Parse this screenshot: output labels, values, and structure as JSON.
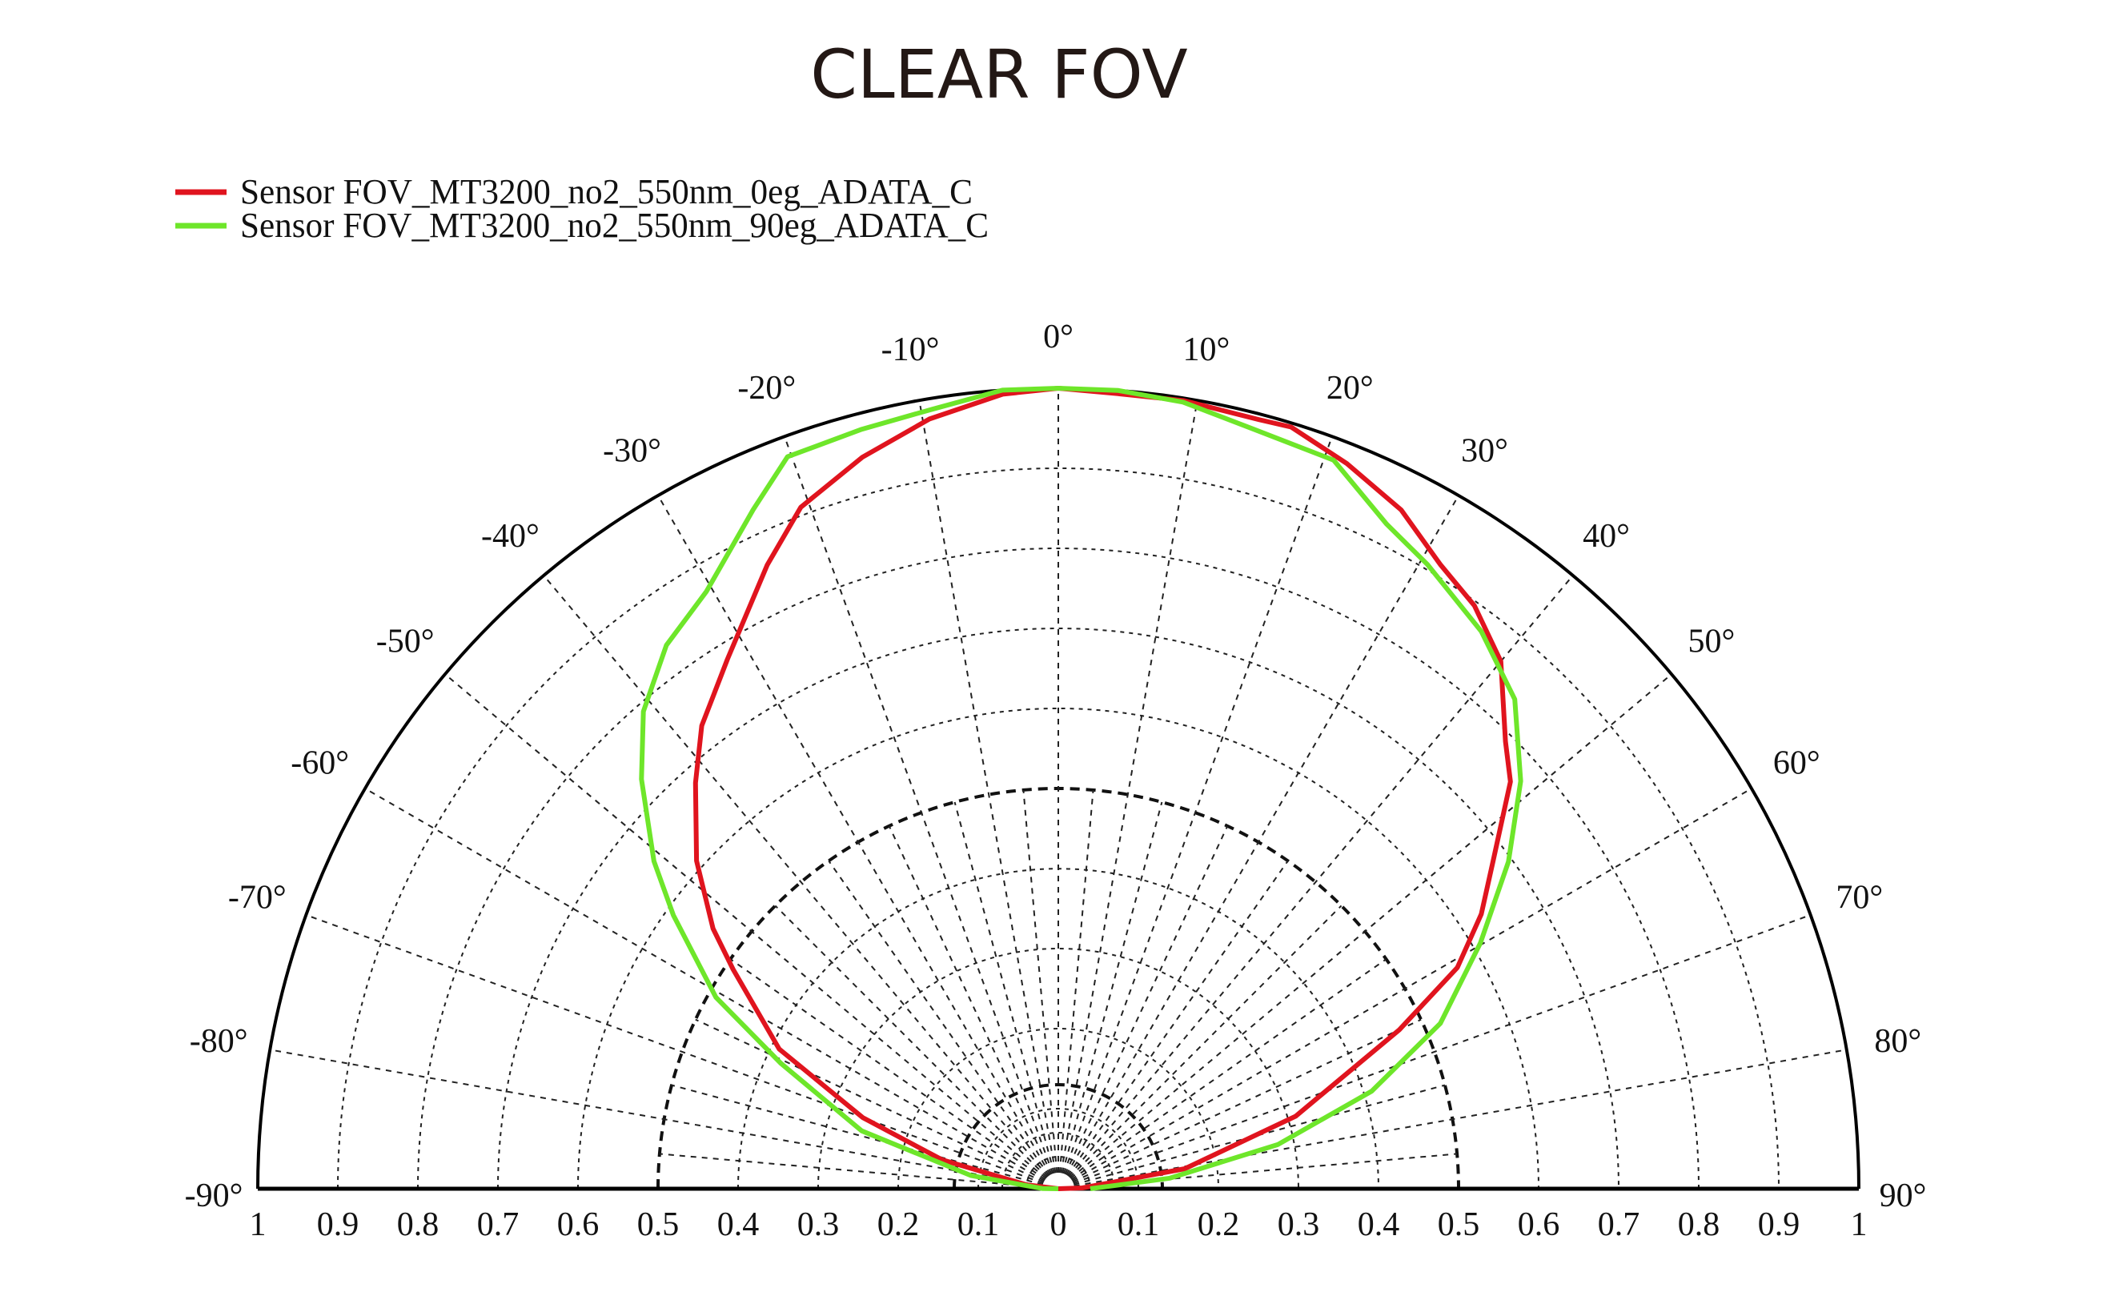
{
  "chart_data": {
    "type": "polar-line",
    "title": "CLEAR FOV",
    "angle_range": [
      -90,
      90
    ],
    "radial_range": [
      0,
      1
    ],
    "angle_ticks": [
      -90,
      -80,
      -70,
      -60,
      -50,
      -40,
      -30,
      -20,
      -10,
      0,
      10,
      20,
      30,
      40,
      50,
      60,
      70,
      80,
      90
    ],
    "angle_tick_labels": [
      "-90°",
      "-80°",
      "-70°",
      "-60°",
      "-50°",
      "-40°",
      "-30°",
      "-20°",
      "-10°",
      "0°",
      "10°",
      "20°",
      "30°",
      "40°",
      "50°",
      "60°",
      "70°",
      "80°",
      "90°"
    ],
    "radial_tick_labels_left": [
      "1",
      "0.9",
      "0.8",
      "0.7",
      "0.6",
      "0.5",
      "0.4",
      "0.3",
      "0.2",
      "0.1"
    ],
    "radial_tick_labels_right": [
      "0",
      "0.1",
      "0.2",
      "0.3",
      "0.4",
      "0.5",
      "0.6",
      "0.7",
      "0.8",
      "0.9",
      "1"
    ],
    "grid": true,
    "legend_position": "top-left",
    "series": [
      {
        "name": "Sensor FOV_MT3200_no2_550nm_0eg_ADATA_C",
        "color": "#e0141e",
        "points": [
          [
            -90,
            0
          ],
          [
            -83,
            0.04
          ],
          [
            -76,
            0.15
          ],
          [
            -70,
            0.26
          ],
          [
            -63.4,
            0.39
          ],
          [
            -56,
            0.49
          ],
          [
            -53,
            0.54
          ],
          [
            -47.8,
            0.61
          ],
          [
            -41.8,
            0.68
          ],
          [
            -37.6,
            0.73
          ],
          [
            -32,
            0.78
          ],
          [
            -25,
            0.86
          ],
          [
            -20.7,
            0.91
          ],
          [
            -15,
            0.946
          ],
          [
            -9.5,
            0.975
          ],
          [
            -4,
            0.995
          ],
          [
            0,
            1.0
          ],
          [
            4.3,
            0.996
          ],
          [
            9,
            0.997
          ],
          [
            14.6,
            0.993
          ],
          [
            17,
            0.995
          ],
          [
            21.7,
            0.975
          ],
          [
            26.8,
            0.95
          ],
          [
            31.5,
            0.914
          ],
          [
            35.5,
            0.895
          ],
          [
            40,
            0.86
          ],
          [
            45,
            0.79
          ],
          [
            48,
            0.76
          ],
          [
            53,
            0.68
          ],
          [
            57,
            0.63
          ],
          [
            61,
            0.57
          ],
          [
            65,
            0.47
          ],
          [
            73,
            0.31
          ],
          [
            81,
            0.16
          ],
          [
            88,
            0.03
          ],
          [
            90,
            0
          ]
        ]
      },
      {
        "name": "Sensor FOV_MT3200_no2_550nm_90eg_ADATA_C",
        "color": "#6ee62a",
        "points": [
          [
            -90,
            0
          ],
          [
            -89,
            0.02
          ],
          [
            -81.4,
            0.11
          ],
          [
            -73.6,
            0.256
          ],
          [
            -65.7,
            0.38
          ],
          [
            -60.8,
            0.49
          ],
          [
            -54.6,
            0.59
          ],
          [
            -51,
            0.65
          ],
          [
            -45.5,
            0.73
          ],
          [
            -41,
            0.79
          ],
          [
            -35.8,
            0.837
          ],
          [
            -30.5,
            0.866
          ],
          [
            -24.2,
            0.93
          ],
          [
            -20.3,
            0.975
          ],
          [
            -14.5,
            0.98
          ],
          [
            -9.4,
            0.986
          ],
          [
            -4,
            1.0
          ],
          [
            0,
            1.0
          ],
          [
            4.3,
            1.0
          ],
          [
            9,
            0.995
          ],
          [
            14.3,
            0.98
          ],
          [
            20.7,
            0.973
          ],
          [
            26.3,
            0.926
          ],
          [
            30.6,
            0.906
          ],
          [
            37.2,
            0.874
          ],
          [
            43,
            0.836
          ],
          [
            48.6,
            0.77
          ],
          [
            54,
            0.695
          ],
          [
            59.8,
            0.61
          ],
          [
            66.6,
            0.52
          ],
          [
            72.7,
            0.41
          ],
          [
            78.6,
            0.28
          ],
          [
            84.6,
            0.14
          ],
          [
            90,
            0.04
          ]
        ]
      }
    ]
  }
}
